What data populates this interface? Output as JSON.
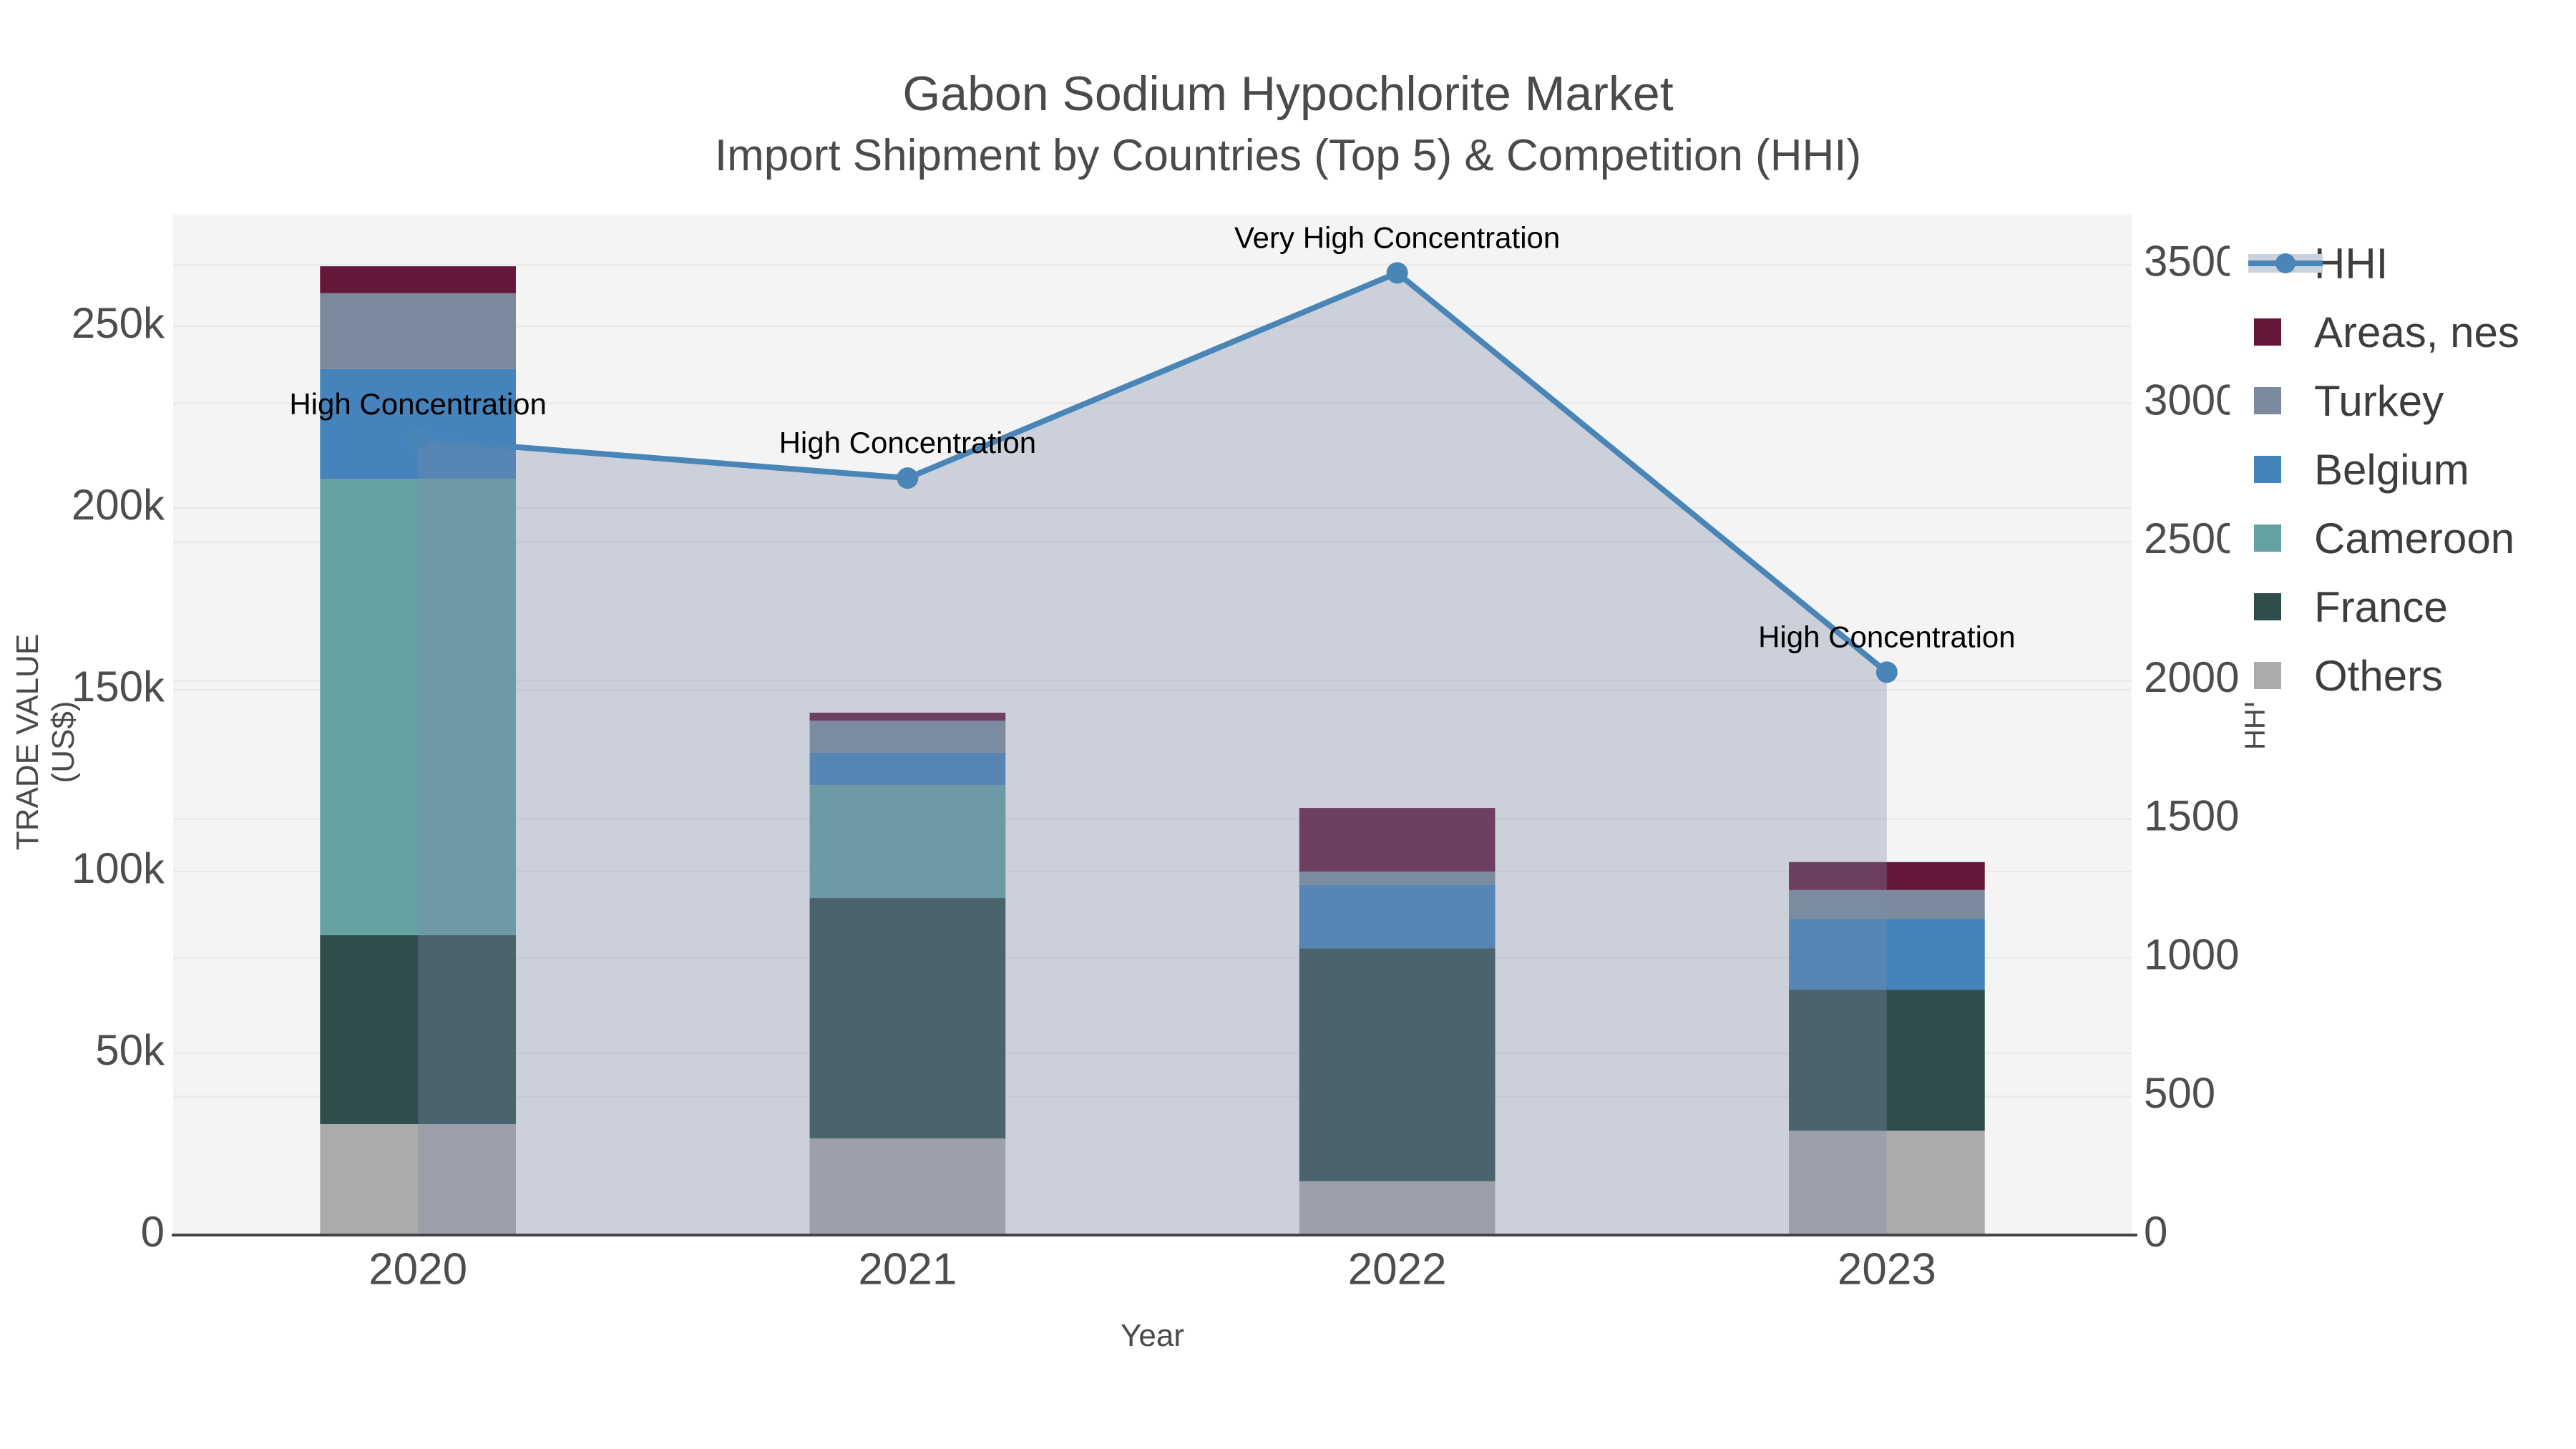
{
  "header": {
    "title": "Gabon Sodium Hypochlorite Market",
    "subtitle": "Import Shipment by Countries (Top 5) & Competition (HHI)"
  },
  "axes": {
    "x": {
      "title": "Year",
      "tick_labels": [
        "2020",
        "2021",
        "2022",
        "2023"
      ]
    },
    "y_left": {
      "title": "TRADE VALUE (US$)",
      "tick_labels": [
        "0",
        "50k",
        "100k",
        "150k",
        "200k",
        "250k"
      ],
      "tick_values": [
        0,
        50000,
        100000,
        150000,
        200000,
        250000
      ],
      "range": [
        0,
        280700
      ]
    },
    "y_right": {
      "title": "HHI",
      "tick_labels": [
        "0",
        "500",
        "1000",
        "1500",
        "2000",
        "2500",
        "3000",
        "3500"
      ],
      "tick_values": [
        0,
        500,
        1000,
        1500,
        2000,
        2500,
        3000,
        3500
      ],
      "range": [
        0,
        3680
      ]
    }
  },
  "legend": {
    "position": "right",
    "items": [
      {
        "label": "HHI",
        "symbol": "line"
      },
      {
        "label": "Areas, nes",
        "symbol": "swatch"
      },
      {
        "label": "Turkey",
        "symbol": "swatch"
      },
      {
        "label": "Belgium",
        "symbol": "swatch"
      },
      {
        "label": "Cameroon",
        "symbol": "swatch"
      },
      {
        "label": "France",
        "symbol": "swatch"
      },
      {
        "label": "Others",
        "symbol": "swatch"
      }
    ]
  },
  "chart_data": {
    "type": "bar",
    "subtype": "stacked-bars-with-line-overlay",
    "grid": true,
    "categories": [
      "2020",
      "2021",
      "2022",
      "2023"
    ],
    "series": [
      {
        "name": "Others",
        "color": "#ABABAB",
        "values": [
          30500,
          26600,
          14800,
          28700
        ]
      },
      {
        "name": "France",
        "color": "#2E4D4C",
        "values": [
          52000,
          66100,
          64100,
          38800
        ]
      },
      {
        "name": "Cameroon",
        "color": "#64A1A1",
        "values": [
          125500,
          31100,
          0,
          0
        ]
      },
      {
        "name": "Belgium",
        "color": "#4483BB",
        "values": [
          30200,
          8900,
          17400,
          19500
        ]
      },
      {
        "name": "Turkey",
        "color": "#7A8A9C",
        "values": [
          20900,
          8800,
          3700,
          7900
        ]
      },
      {
        "name": "Areas, nes",
        "color": "#65173B",
        "values": [
          7400,
          2200,
          17500,
          7700
        ]
      }
    ],
    "line_series": {
      "name": "HHI",
      "axis": "right",
      "color": "#4A85B8",
      "area_fill": "rgba(125,140,170,0.35)",
      "band_color": "#C9D1DC",
      "values": [
        2870,
        2730,
        3470,
        2030
      ]
    },
    "annotations": [
      {
        "category": "2020",
        "text": "High Concentration"
      },
      {
        "category": "2021",
        "text": "High Concentration"
      },
      {
        "category": "2022",
        "text": "Very High Concentration"
      },
      {
        "category": "2023",
        "text": "High Concentration"
      }
    ],
    "title": "Gabon Sodium Hypochlorite Market",
    "xlabel": "Year",
    "ylabel": "TRADE VALUE (US$)",
    "ylabel_right": "HHI"
  },
  "style": {
    "plot_bg": "#f4f4f4",
    "gridline_color": "#e9e9e9",
    "axis_line_color": "#444444",
    "tick_color": "#4d4d4d",
    "annotation_color": "#000000"
  }
}
